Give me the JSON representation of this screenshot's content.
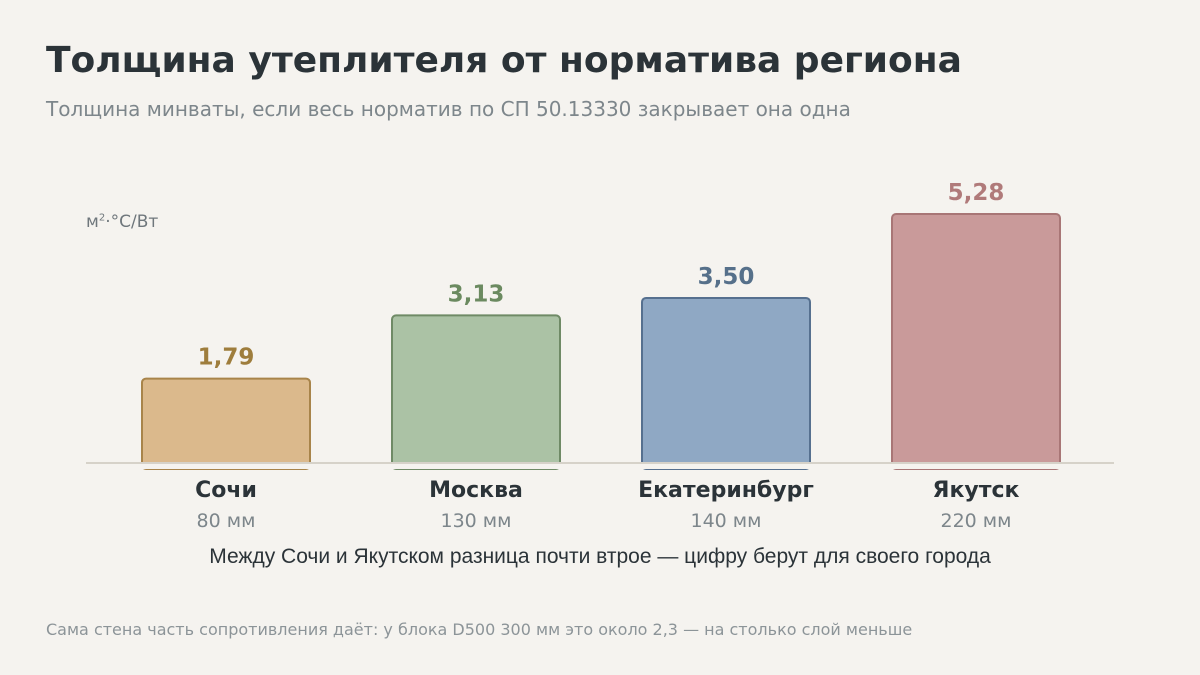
{
  "title": "Толщина утеплителя от норматива региона",
  "subtitle": "Толщина минваты, если весь норматив по СП 50.13330 закрывает она одна",
  "unit_base": "м",
  "unit_sup": "2",
  "unit_rest": "·°C/Вт",
  "note": "Между Сочи и Якутском разница почти втрое — цифру берут для своего города",
  "footnote": "Сама стена часть сопротивления даёт: у блока D500 300 мм это около 2,3 — на столько слой меньше",
  "chart_data": {
    "type": "bar",
    "categories": [
      "Сочи",
      "Москва",
      "Екатеринбург",
      "Якутск"
    ],
    "values": [
      1.79,
      3.13,
      3.5,
      5.28
    ],
    "value_labels": [
      "1,79",
      "3,13",
      "3,50",
      "5,28"
    ],
    "sub_labels": [
      "80 мм",
      "130 мм",
      "140 мм",
      "220 мм"
    ],
    "ylabel": "м²·°C/Вт",
    "ylim": [
      0,
      5.28
    ],
    "grid": false,
    "colors": {
      "fill": [
        "#dbb98c",
        "#abc2a5",
        "#8fa8c4",
        "#c99a9a"
      ],
      "stroke": [
        "#a8844a",
        "#6f8a66",
        "#56708f",
        "#a87676"
      ],
      "label": [
        "#9e7d3c",
        "#6b8a60",
        "#56708a",
        "#b07a7a"
      ]
    }
  }
}
